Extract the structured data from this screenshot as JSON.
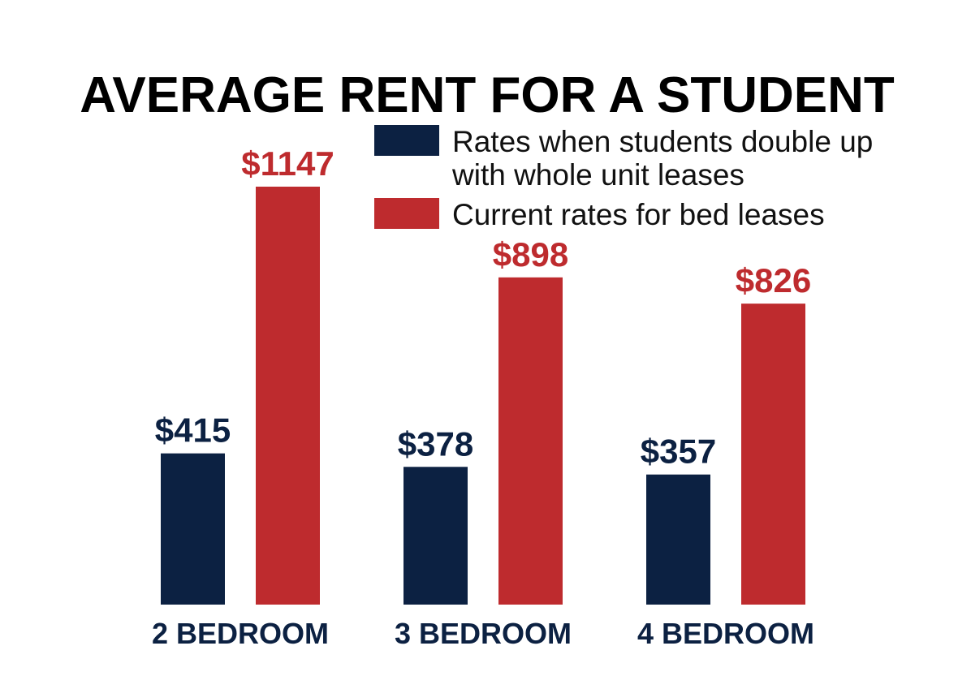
{
  "chart_data": {
    "type": "bar",
    "title": "AVERAGE RENT FOR A STUDENT",
    "categories": [
      "2 BEDROOM",
      "3 BEDROOM",
      "4 BEDROOM"
    ],
    "series": [
      {
        "name_lines": [
          "Rates when students double up",
          "with whole unit leases"
        ],
        "values": [
          415,
          378,
          357
        ],
        "labels": [
          "$415",
          "$378",
          "$357"
        ],
        "color": "#0c2142"
      },
      {
        "name_lines": [
          "Current rates for bed leases"
        ],
        "values": [
          1147,
          898,
          826
        ],
        "labels": [
          "$1147",
          "$898",
          "$826"
        ],
        "color": "#be2b2e"
      }
    ],
    "category_label_color": "#0c2142",
    "ylim": [
      0,
      1200
    ],
    "legend_position": "top-right",
    "grid": false,
    "axes_visible": false
  }
}
